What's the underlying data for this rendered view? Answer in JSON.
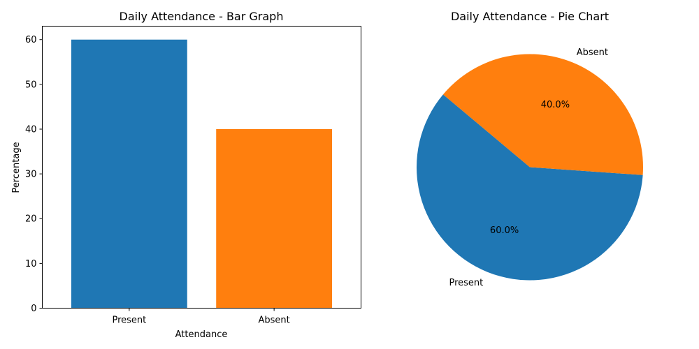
{
  "chart_data": [
    {
      "type": "bar",
      "title": "Daily Attendance - Bar Graph",
      "xlabel": "Attendance",
      "ylabel": "Percentage",
      "categories": [
        "Present",
        "Absent"
      ],
      "values": [
        60,
        40
      ],
      "colors": [
        "#1f77b4",
        "#ff7f0e"
      ],
      "ylim": [
        0,
        63
      ],
      "yticks": [
        0,
        10,
        20,
        30,
        40,
        50,
        60
      ],
      "ytick_labels": [
        "0",
        "10",
        "20",
        "30",
        "40",
        "50",
        "60"
      ],
      "grid": false
    },
    {
      "type": "pie",
      "title": "Daily Attendance - Pie Chart",
      "labels": [
        "Present",
        "Absent"
      ],
      "values": [
        60,
        40
      ],
      "percent_labels": [
        "60.0%",
        "40.0%"
      ],
      "colors": [
        "#1f77b4",
        "#ff7f0e"
      ],
      "start_angle_deg": 140
    }
  ]
}
